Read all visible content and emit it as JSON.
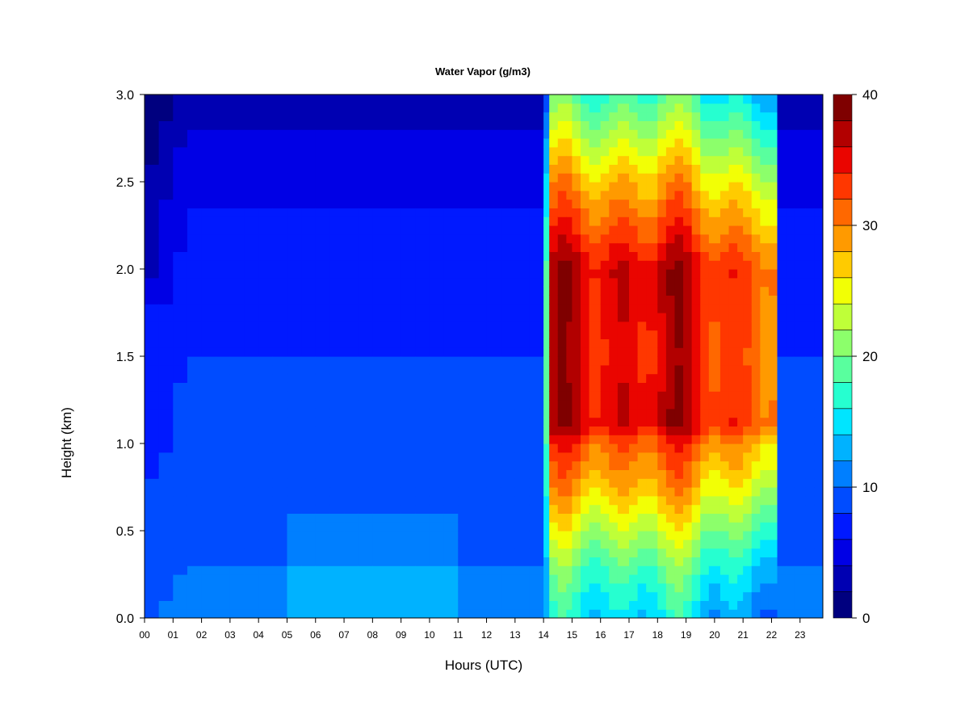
{
  "chart_data": {
    "type": "heatmap",
    "title": "Water Vapor (g/m3)",
    "xlabel": "Hours (UTC)",
    "ylabel": "Height (km)",
    "x_ticks": [
      "00",
      "01",
      "02",
      "03",
      "04",
      "05",
      "06",
      "07",
      "08",
      "09",
      "10",
      "11",
      "12",
      "13",
      "14",
      "15",
      "16",
      "17",
      "18",
      "19",
      "20",
      "21",
      "22",
      "23"
    ],
    "y_ticks": [
      "0.0",
      "0.5",
      "1.0",
      "1.5",
      "2.0",
      "2.5",
      "3.0"
    ],
    "xlim": [
      0,
      23.8
    ],
    "ylim": [
      0,
      3.0
    ],
    "colorbar": {
      "min": 0,
      "max": 40,
      "levels": 20,
      "tick_labels": [
        "0",
        "10",
        "20",
        "30",
        "40"
      ],
      "colors": [
        "#00007f",
        "#0000b2",
        "#0000e5",
        "#0019ff",
        "#004cff",
        "#007fff",
        "#00b2ff",
        "#00e5ff",
        "#26ffd0",
        "#59ff9e",
        "#8cff6b",
        "#bfff38",
        "#f2ff05",
        "#ffcb00",
        "#ff9a00",
        "#ff6800",
        "#ff3700",
        "#ea0500",
        "#b20000",
        "#7f0000"
      ]
    },
    "hours": [
      0,
      0.5,
      1,
      1.5,
      2,
      2.5,
      3,
      3.5,
      4,
      4.5,
      5,
      5.5,
      6,
      6.5,
      7,
      7.5,
      8,
      8.5,
      9,
      9.5,
      10,
      10.5,
      11,
      11.5,
      12,
      12.5,
      13,
      13.5,
      14,
      14.2,
      14.5,
      14.8,
      15,
      15.3,
      15.6,
      16,
      16.3,
      16.6,
      17,
      17.3,
      17.6,
      18,
      18.3,
      18.6,
      18.9,
      19.2,
      19.5,
      19.8,
      20.2,
      20.5,
      20.8,
      21,
      21.3,
      21.6,
      21.9,
      22.2,
      22.5,
      22.8,
      23.2,
      23.5,
      23.8
    ],
    "profiles": {
      "heights_km": [
        0.0,
        0.3,
        0.6,
        0.8,
        1.0,
        1.1,
        1.5,
        2.0,
        2.5,
        3.0
      ],
      "background_values": [
        11.0,
        10.0,
        9.0,
        9.0,
        8.5,
        8.5,
        8.0,
        7.0,
        5.5,
        3.0
      ],
      "afternoon_values": [
        15.0,
        19.0,
        25.0,
        29.0,
        32.0,
        36.0,
        35.0,
        36.0,
        28.0,
        18.0
      ]
    }
  }
}
